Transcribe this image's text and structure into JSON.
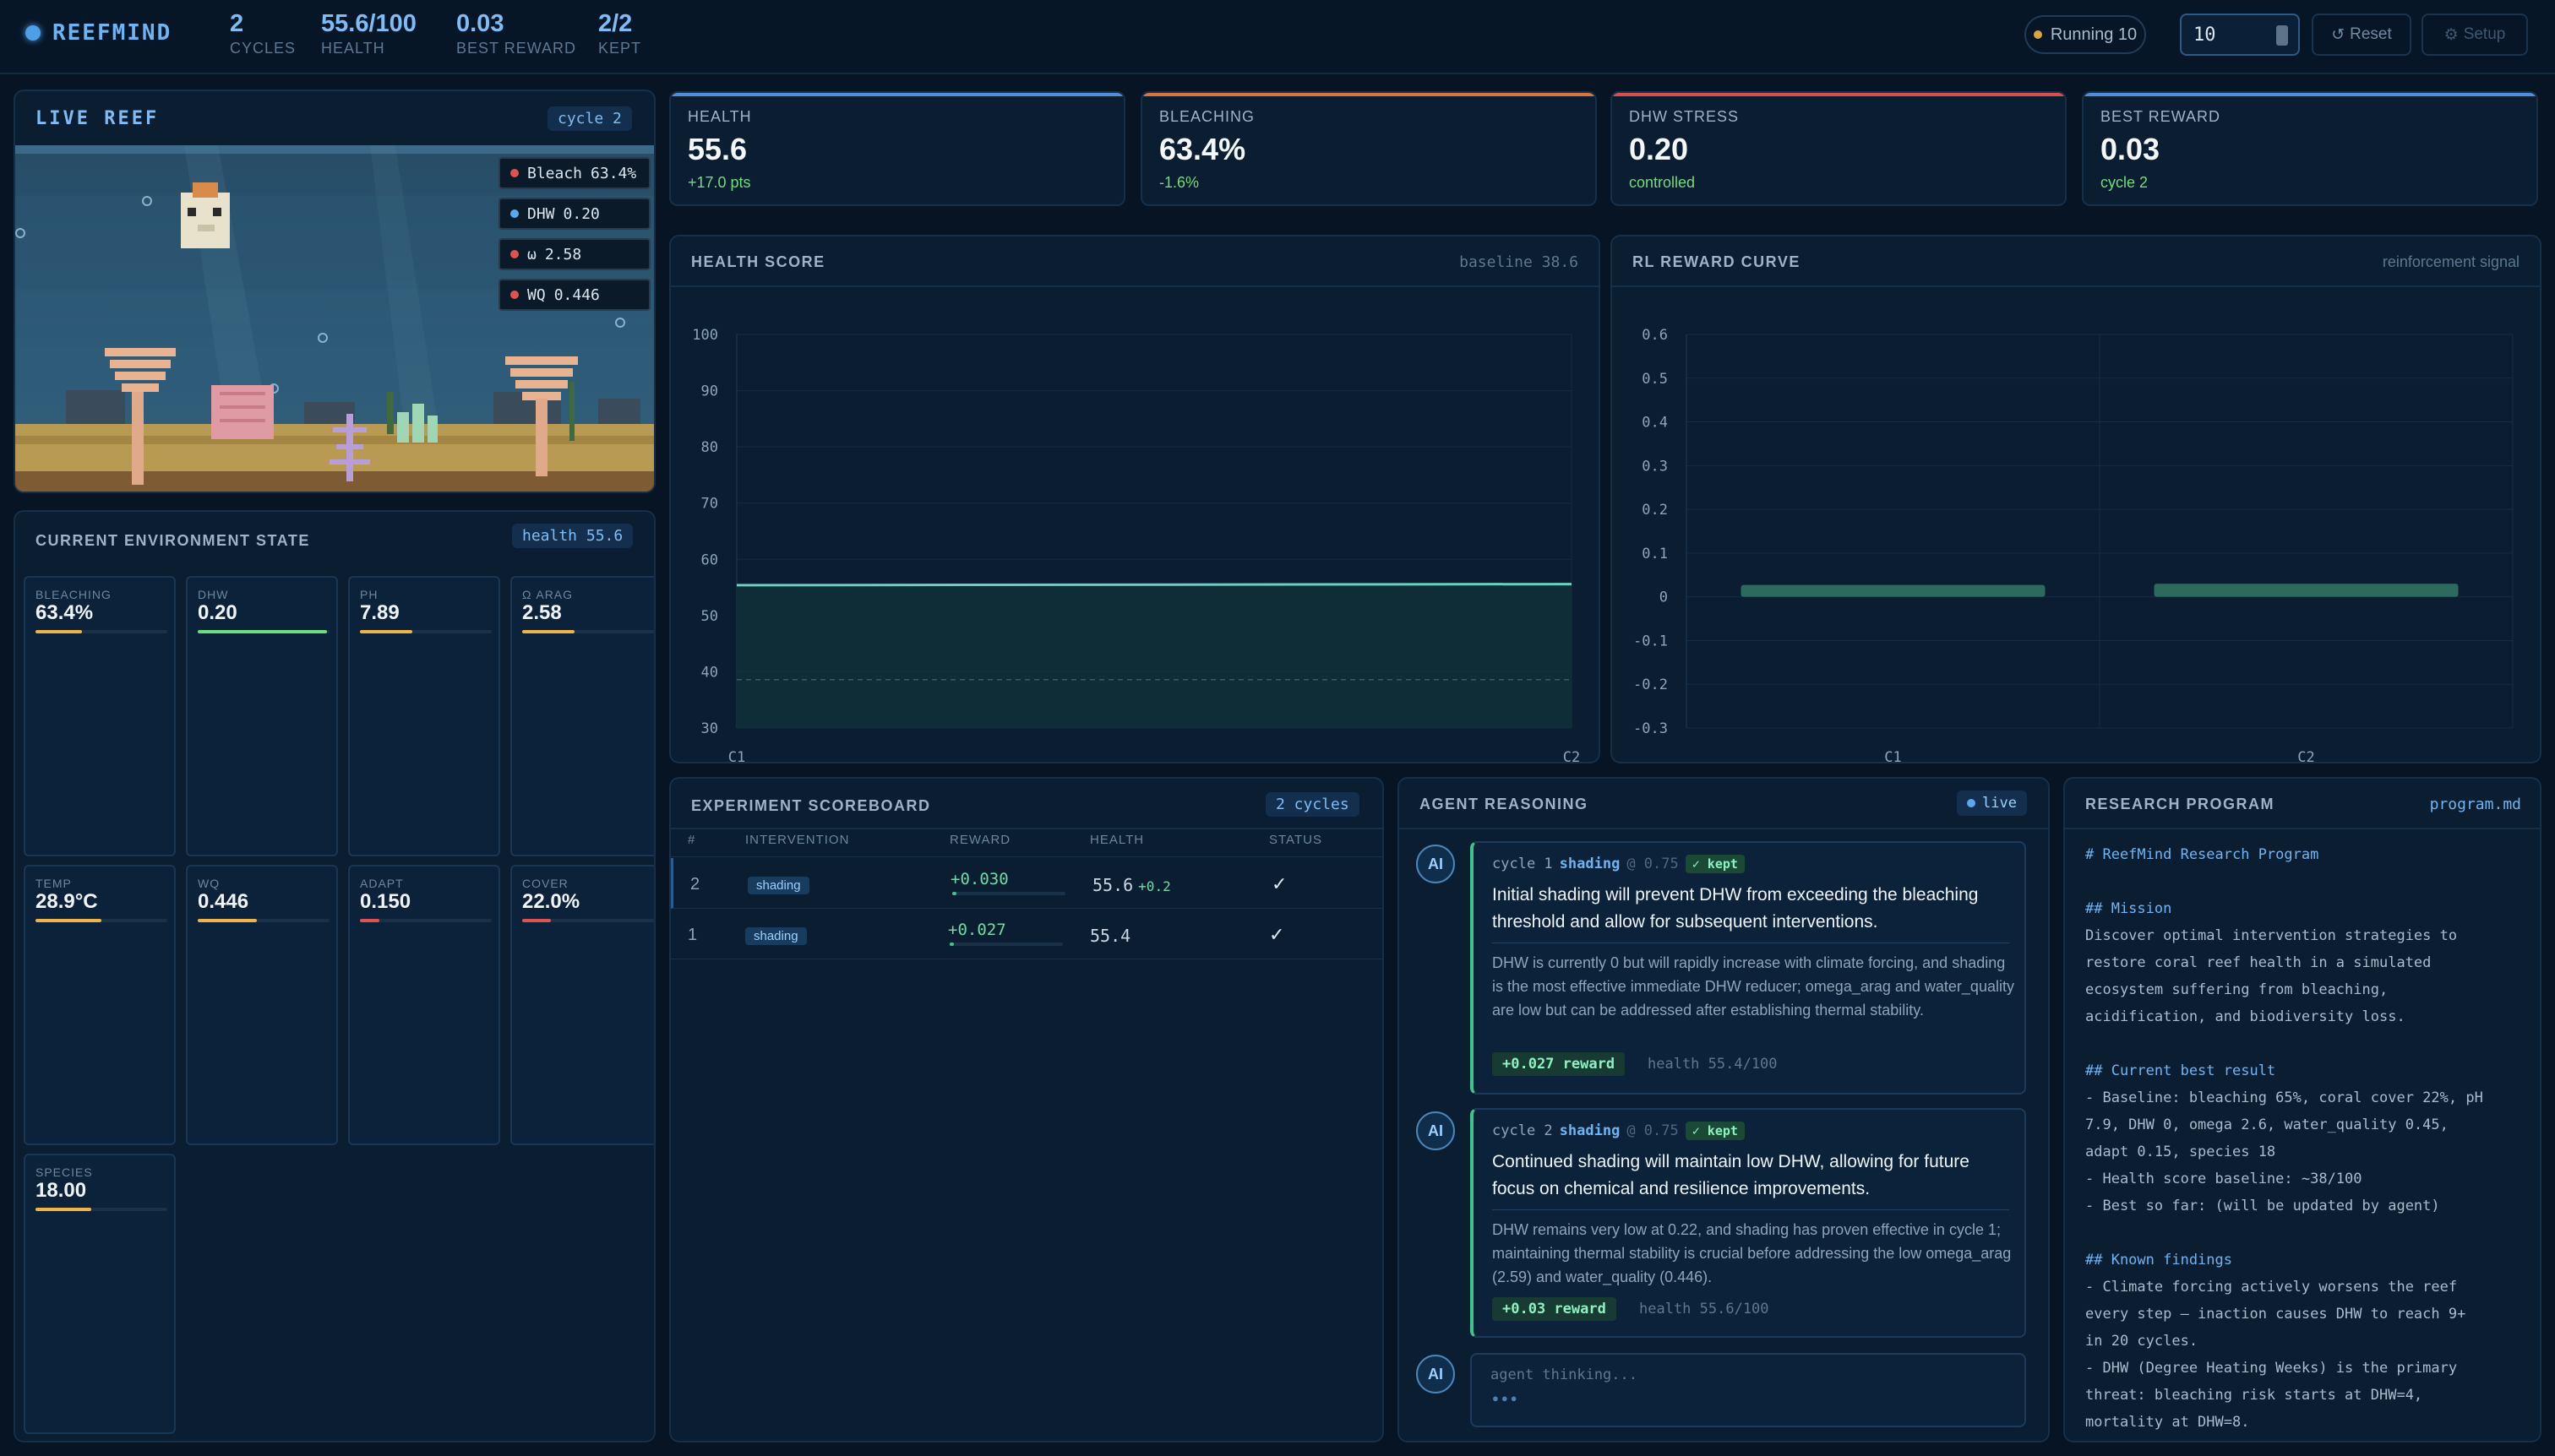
{
  "header": {
    "brand": "REEFMIND",
    "stats": [
      {
        "value": "2",
        "label": "CYCLES"
      },
      {
        "value": "55.6/100",
        "label": "HEALTH"
      },
      {
        "value": "0.03",
        "label": "BEST REWARD"
      },
      {
        "value": "2/2",
        "label": "KEPT"
      }
    ],
    "running_label": "Running 10",
    "cycles_input_value": "10",
    "reset_label": "Reset",
    "setup_label": "Setup"
  },
  "live_reef": {
    "title": "LIVE REEF",
    "cycle_chip": "cycle 2",
    "overlays": [
      {
        "label": "Bleach",
        "value": "63.4%",
        "color": "#e0524f"
      },
      {
        "label": "DHW",
        "value": "0.20",
        "color": "#5aa8ee"
      },
      {
        "label": "ω",
        "value": "2.58",
        "color": "#e0524f"
      },
      {
        "label": "WQ",
        "value": "0.446",
        "color": "#e0524f"
      }
    ]
  },
  "environment": {
    "title": "CURRENT ENVIRONMENT STATE",
    "chip": "health 55.6",
    "cards": [
      {
        "label": "BLEACHING",
        "value": "63.4%",
        "fill": 0.35,
        "color": "#f0b24a"
      },
      {
        "label": "DHW",
        "value": "0.20",
        "fill": 0.98,
        "color": "#6fdc7e"
      },
      {
        "label": "PH",
        "value": "7.89",
        "fill": 0.4,
        "color": "#f0b24a"
      },
      {
        "label": "Ω ARAG",
        "value": "2.58",
        "fill": 0.4,
        "color": "#f0b24a"
      },
      {
        "label": "TEMP",
        "value": "28.9°C",
        "fill": 0.5,
        "color": "#f0b24a"
      },
      {
        "label": "WQ",
        "value": "0.446",
        "fill": 0.45,
        "color": "#f0b24a"
      },
      {
        "label": "ADAPT",
        "value": "0.150",
        "fill": 0.15,
        "color": "#e0524f"
      },
      {
        "label": "COVER",
        "value": "22.0%",
        "fill": 0.22,
        "color": "#e0524f"
      },
      {
        "label": "SPECIES",
        "value": "18.00",
        "fill": 0.42,
        "color": "#f0b24a"
      }
    ]
  },
  "kpis": [
    {
      "label": "HEALTH",
      "value": "55.6",
      "sub": "+17.0 pts",
      "sub_color": "#6fdc7e",
      "bar": "#4f8fd8"
    },
    {
      "label": "BLEACHING",
      "value": "63.4%",
      "sub": "-1.6%",
      "sub_color": "#6fdc7e",
      "bar": "#d9763f"
    },
    {
      "label": "DHW STRESS",
      "value": "0.20",
      "sub": "controlled",
      "sub_color": "#6fdc7e",
      "bar": "#d94f4f"
    },
    {
      "label": "BEST REWARD",
      "value": "0.03",
      "sub": "cycle 2",
      "sub_color": "#6fdc7e",
      "bar": "#4f8fd8"
    }
  ],
  "chart_data": [
    {
      "type": "area",
      "title": "HEALTH SCORE",
      "subtitle": "baseline 38.6",
      "categories": [
        "C1",
        "C2"
      ],
      "series": [
        {
          "name": "health",
          "values": [
            55.4,
            55.6
          ]
        }
      ],
      "baseline": 38.6,
      "ylim": [
        30,
        100
      ],
      "yticks": [
        30,
        40,
        50,
        60,
        70,
        80,
        90,
        100
      ],
      "grid": true
    },
    {
      "type": "bar",
      "title": "RL REWARD CURVE",
      "subtitle": "reinforcement signal",
      "categories": [
        "C1",
        "C2"
      ],
      "values": [
        0.027,
        0.03
      ],
      "ylim": [
        -0.3,
        0.6
      ],
      "yticks": [
        -0.3,
        -0.2,
        -0.1,
        0,
        0.1,
        0.2,
        0.3,
        0.4,
        0.5,
        0.6
      ],
      "grid": true
    }
  ],
  "scoreboard": {
    "title": "EXPERIMENT SCOREBOARD",
    "chip": "2 cycles",
    "columns": [
      "#",
      "INTERVENTION",
      "REWARD",
      "HEALTH",
      "STATUS"
    ],
    "rows": [
      {
        "num": "2",
        "intervention": "shading",
        "reward": "+0.030",
        "reward_fill": 0.04,
        "health": "55.6",
        "delta": "+0.2",
        "status": "✓"
      },
      {
        "num": "1",
        "intervention": "shading",
        "reward": "+0.027",
        "reward_fill": 0.04,
        "health": "55.4",
        "delta": "",
        "status": "✓"
      }
    ]
  },
  "agent": {
    "title": "AGENT REASONING",
    "live_label": "live",
    "avatar_label": "AI",
    "entries": [
      {
        "cycle": "cycle 1",
        "tool": "shading",
        "confidence": "@ 0.75",
        "badge": "✓ kept",
        "headline": "Initial shading will prevent DHW from exceeding the bleaching threshold and allow for subsequent interventions.",
        "body": "DHW is currently 0 but will rapidly increase with climate forcing, and shading is the most effective immediate DHW reducer; omega_arag and water_quality are low but can be addressed after establishing thermal stability.",
        "reward": "+0.027 reward",
        "health": "health 55.4/100"
      },
      {
        "cycle": "cycle 2",
        "tool": "shading",
        "confidence": "@ 0.75",
        "badge": "✓ kept",
        "headline": "Continued shading will maintain low DHW, allowing for future focus on chemical and resilience improvements.",
        "body": "DHW remains very low at 0.22, and shading has proven effective in cycle 1; maintaining thermal stability is crucial before addressing the low omega_arag (2.59) and water_quality (0.446).",
        "reward": "+0.03 reward",
        "health": "health 55.6/100"
      }
    ],
    "thinking": "agent thinking...",
    "thinking_dots": "●●●"
  },
  "research": {
    "title": "RESEARCH PROGRAM",
    "file": "program.md",
    "lines": [
      {
        "text": "# ReefMind Research Program",
        "heading": true
      },
      {
        "text": "",
        "heading": false
      },
      {
        "text": "## Mission",
        "heading": true
      },
      {
        "text": "Discover optimal intervention strategies to",
        "heading": false
      },
      {
        "text": "restore coral reef health in a simulated",
        "heading": false
      },
      {
        "text": "ecosystem suffering from bleaching,",
        "heading": false
      },
      {
        "text": "acidification, and biodiversity loss.",
        "heading": false
      },
      {
        "text": "",
        "heading": false
      },
      {
        "text": "## Current best result",
        "heading": true
      },
      {
        "text": "- Baseline: bleaching 65%, coral cover 22%, pH",
        "heading": false
      },
      {
        "text": "7.9, DHW 0, omega 2.6, water_quality 0.45,",
        "heading": false
      },
      {
        "text": "adapt 0.15, species 18",
        "heading": false
      },
      {
        "text": "- Health score baseline: ~38/100",
        "heading": false
      },
      {
        "text": "- Best so far: (will be updated by agent)",
        "heading": false
      },
      {
        "text": "",
        "heading": false
      },
      {
        "text": "## Known findings",
        "heading": true
      },
      {
        "text": "- Climate forcing actively worsens the reef",
        "heading": false
      },
      {
        "text": "every step — inaction causes DHW to reach 9+",
        "heading": false
      },
      {
        "text": "in 20 cycles.",
        "heading": false
      },
      {
        "text": "- DHW (Degree Heating Weeks) is the primary",
        "heading": false
      },
      {
        "text": "threat: bleaching risk starts at DHW=4,",
        "heading": false
      },
      {
        "text": "mortality at DHW=8.",
        "heading": false
      }
    ]
  }
}
